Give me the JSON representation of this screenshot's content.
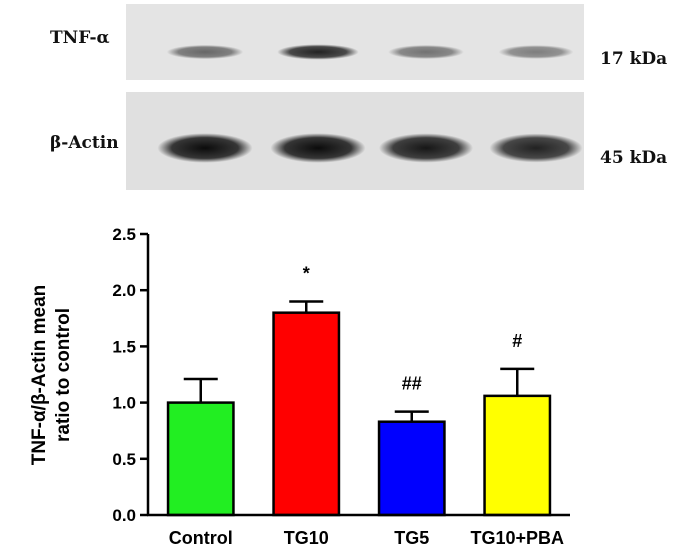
{
  "blot": {
    "rows": [
      {
        "label": "TNF-α",
        "size": "17 kDa",
        "band_intensity": [
          0.55,
          0.85,
          0.5,
          0.45
        ]
      },
      {
        "label": "β-Actin",
        "size": "45 kDa",
        "band_intensity": [
          0.95,
          0.95,
          0.9,
          0.85
        ]
      }
    ]
  },
  "chart_data": {
    "type": "bar",
    "categories": [
      "Control",
      "TG10",
      "TG5",
      "TG10+PBA"
    ],
    "values": [
      1.0,
      1.8,
      0.83,
      1.06
    ],
    "errors": [
      0.21,
      0.1,
      0.09,
      0.24
    ],
    "annotations": [
      "",
      "*",
      "##",
      "#"
    ],
    "colors": [
      "#22ee22",
      "#ff0000",
      "#0000ff",
      "#ffff00"
    ],
    "title": "",
    "xlabel": "",
    "ylabel_lines": [
      "TNF-α/β-Actin mean",
      "ratio to control"
    ],
    "ylim": [
      0,
      2.5
    ],
    "yticks": [
      "0.0",
      "0.5",
      "1.0",
      "1.5",
      "2.0",
      "2.5"
    ],
    "grid": false,
    "legend": "none"
  }
}
